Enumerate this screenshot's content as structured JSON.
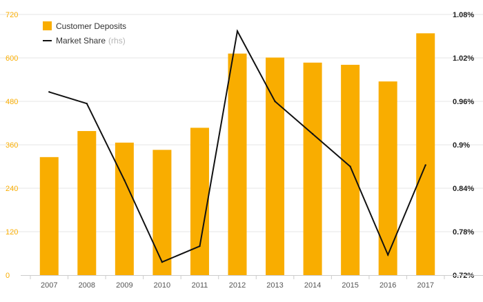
{
  "colors": {
    "bar": "#F9AD00",
    "line": "#111111",
    "grid": "#e6e6e6",
    "left_axis_text": "#F9AD00",
    "right_axis_text": "#222222",
    "x_axis_text": "#555555"
  },
  "legend": {
    "deposits_label": "Customer Deposits",
    "share_label": "Market Share",
    "share_suffix": "(rhs)"
  },
  "chart_data": {
    "type": "bar",
    "categories": [
      "2007",
      "2008",
      "2009",
      "2010",
      "2011",
      "2012",
      "2013",
      "2014",
      "2015",
      "2016",
      "2017"
    ],
    "series": [
      {
        "name": "Customer Deposits",
        "type": "bar",
        "axis": "left",
        "values": [
          326,
          398,
          366,
          346,
          407,
          612,
          601,
          587,
          581,
          535,
          668
        ]
      },
      {
        "name": "Market Share",
        "type": "line",
        "axis": "right",
        "values": [
          0.973,
          0.957,
          0.851,
          0.738,
          0.76,
          1.057,
          0.96,
          0.915,
          0.87,
          0.748,
          0.872
        ]
      }
    ],
    "y_left": {
      "min": 0,
      "max": 720,
      "ticks": [
        "0",
        "120",
        "240",
        "360",
        "480",
        "600",
        "720"
      ]
    },
    "y_right": {
      "min": 0.72,
      "max": 1.08,
      "ticks": [
        "0.72%",
        "0.78%",
        "0.84%",
        "0.9%",
        "0.96%",
        "1.02%",
        "1.08%"
      ]
    },
    "grid": true,
    "legend_position": "top-left"
  }
}
